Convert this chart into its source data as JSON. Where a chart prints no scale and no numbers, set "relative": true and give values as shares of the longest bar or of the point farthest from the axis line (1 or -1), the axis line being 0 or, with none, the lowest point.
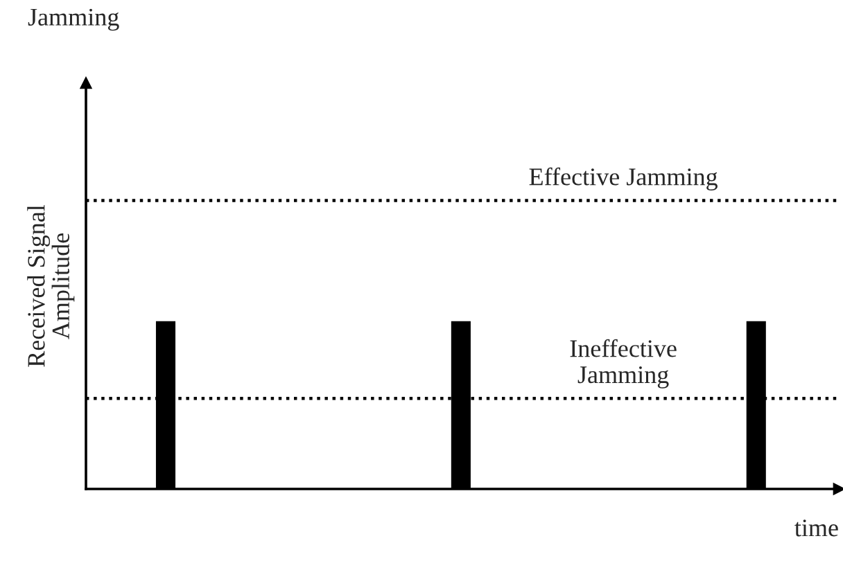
{
  "chart_data": {
    "type": "bar",
    "title": "Jamming",
    "xlabel": "time",
    "ylabel": "Received Signal\nAmplitude",
    "categories": [
      null,
      null,
      null
    ],
    "values": [
      1,
      1,
      1
    ],
    "color": "#000000",
    "relative": true,
    "grid": false,
    "ref_lines": [
      {
        "axis": "y",
        "value": 1.72,
        "label": "Effective Jamming",
        "line_style": "dotted",
        "color": "#000000"
      },
      {
        "axis": "y",
        "value": 0.54,
        "label": "Ineffective\nJamming",
        "line_style": "dotted",
        "color": "#000000"
      }
    ]
  }
}
